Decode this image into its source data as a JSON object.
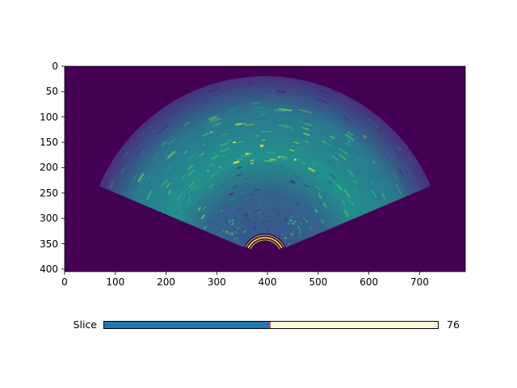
{
  "image_plot": {
    "colormap": "viridis",
    "image_width": 790,
    "image_height": 405,
    "x_ticks": [
      "0",
      "100",
      "200",
      "300",
      "400",
      "500",
      "600",
      "700"
    ],
    "y_ticks": [
      "0",
      "50",
      "100",
      "150",
      "200",
      "250",
      "300",
      "350",
      "400"
    ],
    "xlim": [
      0,
      790
    ],
    "ylim_inverted": [
      405,
      0
    ],
    "fan_apex_data": [
      395,
      375
    ],
    "fan_half_angle_deg": 67,
    "fan_outer_radius": 355,
    "fan_inner_radius": 45,
    "background_color": "#440154"
  },
  "slider": {
    "label": "Slice",
    "value_text": "76",
    "fraction": 0.497,
    "fill_color": "#1f77b4",
    "track_color": "#fafad2",
    "handle_color": "#e34234"
  }
}
